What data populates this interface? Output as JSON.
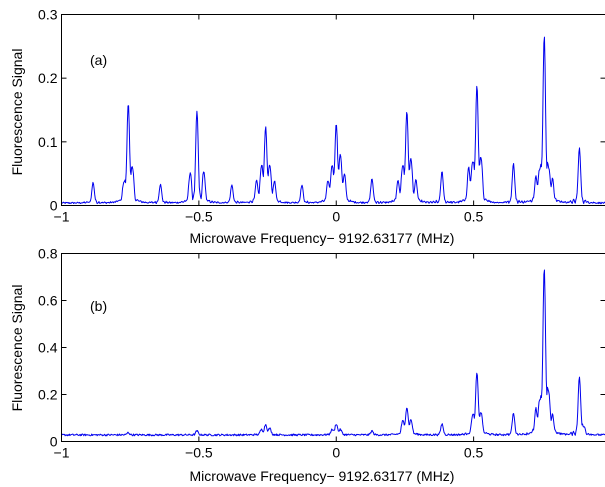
{
  "chart_data": [
    {
      "type": "line",
      "panel_label": "(a)",
      "xlabel": "Microwave Frequency− 9192.63177 (MHz)",
      "ylabel": "Fluorescence Signal",
      "xlim": [
        -1,
        0.98
      ],
      "ylim": [
        0,
        0.3
      ],
      "xticks": [
        -1,
        -0.5,
        0,
        0.5
      ],
      "xtick_labels": [
        "−1",
        "−0.5",
        "0",
        "0.5"
      ],
      "yticks": [
        0,
        0.1,
        0.2,
        0.3
      ],
      "ytick_labels": [
        "0",
        "0.1",
        "0.2",
        "0.3"
      ],
      "grid": false,
      "line_color": "#0000ee",
      "baseline": 0.004,
      "peaks": [
        {
          "x": -0.885,
          "y": 0.036
        },
        {
          "x": -0.772,
          "y": 0.035
        },
        {
          "x": -0.757,
          "y": 0.16
        },
        {
          "x": -0.742,
          "y": 0.058
        },
        {
          "x": -0.64,
          "y": 0.033
        },
        {
          "x": -0.532,
          "y": 0.05
        },
        {
          "x": -0.507,
          "y": 0.147
        },
        {
          "x": -0.482,
          "y": 0.052
        },
        {
          "x": -0.38,
          "y": 0.032
        },
        {
          "x": -0.29,
          "y": 0.035
        },
        {
          "x": -0.272,
          "y": 0.06
        },
        {
          "x": -0.257,
          "y": 0.121
        },
        {
          "x": -0.242,
          "y": 0.06
        },
        {
          "x": -0.225,
          "y": 0.035
        },
        {
          "x": -0.125,
          "y": 0.032
        },
        {
          "x": -0.03,
          "y": 0.035
        },
        {
          "x": -0.015,
          "y": 0.06
        },
        {
          "x": 0.0,
          "y": 0.126
        },
        {
          "x": 0.015,
          "y": 0.078
        },
        {
          "x": 0.03,
          "y": 0.045
        },
        {
          "x": 0.13,
          "y": 0.042
        },
        {
          "x": 0.225,
          "y": 0.035
        },
        {
          "x": 0.242,
          "y": 0.06
        },
        {
          "x": 0.257,
          "y": 0.146
        },
        {
          "x": 0.272,
          "y": 0.07
        },
        {
          "x": 0.29,
          "y": 0.035
        },
        {
          "x": 0.385,
          "y": 0.053
        },
        {
          "x": 0.482,
          "y": 0.055
        },
        {
          "x": 0.497,
          "y": 0.065
        },
        {
          "x": 0.512,
          "y": 0.186
        },
        {
          "x": 0.527,
          "y": 0.072
        },
        {
          "x": 0.645,
          "y": 0.066
        },
        {
          "x": 0.727,
          "y": 0.04
        },
        {
          "x": 0.742,
          "y": 0.055
        },
        {
          "x": 0.757,
          "y": 0.265
        },
        {
          "x": 0.772,
          "y": 0.058
        },
        {
          "x": 0.787,
          "y": 0.035
        },
        {
          "x": 0.885,
          "y": 0.09
        }
      ]
    },
    {
      "type": "line",
      "panel_label": "(b)",
      "xlabel": "Microwave Frequency− 9192.63177 (MHz)",
      "ylabel": "Fluorescence Signal",
      "xlim": [
        -1,
        0.98
      ],
      "ylim": [
        0,
        0.8
      ],
      "xticks": [
        -1,
        -0.5,
        0,
        0.5
      ],
      "xtick_labels": [
        "−1",
        "−0.5",
        "0",
        "0.5"
      ],
      "yticks": [
        0,
        0.2,
        0.4,
        0.6,
        0.8
      ],
      "ytick_labels": [
        "0",
        "0.2",
        "0.4",
        "0.6",
        "0.8"
      ],
      "grid": false,
      "line_color": "#0000ee",
      "baseline": 0.028,
      "peaks": [
        {
          "x": -0.757,
          "y": 0.038
        },
        {
          "x": -0.507,
          "y": 0.045
        },
        {
          "x": -0.272,
          "y": 0.05
        },
        {
          "x": -0.257,
          "y": 0.072
        },
        {
          "x": -0.242,
          "y": 0.055
        },
        {
          "x": -0.015,
          "y": 0.05
        },
        {
          "x": 0.0,
          "y": 0.075
        },
        {
          "x": 0.015,
          "y": 0.05
        },
        {
          "x": 0.13,
          "y": 0.045
        },
        {
          "x": 0.242,
          "y": 0.085
        },
        {
          "x": 0.257,
          "y": 0.145
        },
        {
          "x": 0.272,
          "y": 0.09
        },
        {
          "x": 0.385,
          "y": 0.075
        },
        {
          "x": 0.497,
          "y": 0.11
        },
        {
          "x": 0.512,
          "y": 0.292
        },
        {
          "x": 0.527,
          "y": 0.12
        },
        {
          "x": 0.645,
          "y": 0.12
        },
        {
          "x": 0.727,
          "y": 0.12
        },
        {
          "x": 0.742,
          "y": 0.17
        },
        {
          "x": 0.757,
          "y": 0.735
        },
        {
          "x": 0.772,
          "y": 0.21
        },
        {
          "x": 0.787,
          "y": 0.095
        },
        {
          "x": 0.885,
          "y": 0.278
        },
        {
          "x": 0.9,
          "y": 0.06
        }
      ]
    }
  ]
}
